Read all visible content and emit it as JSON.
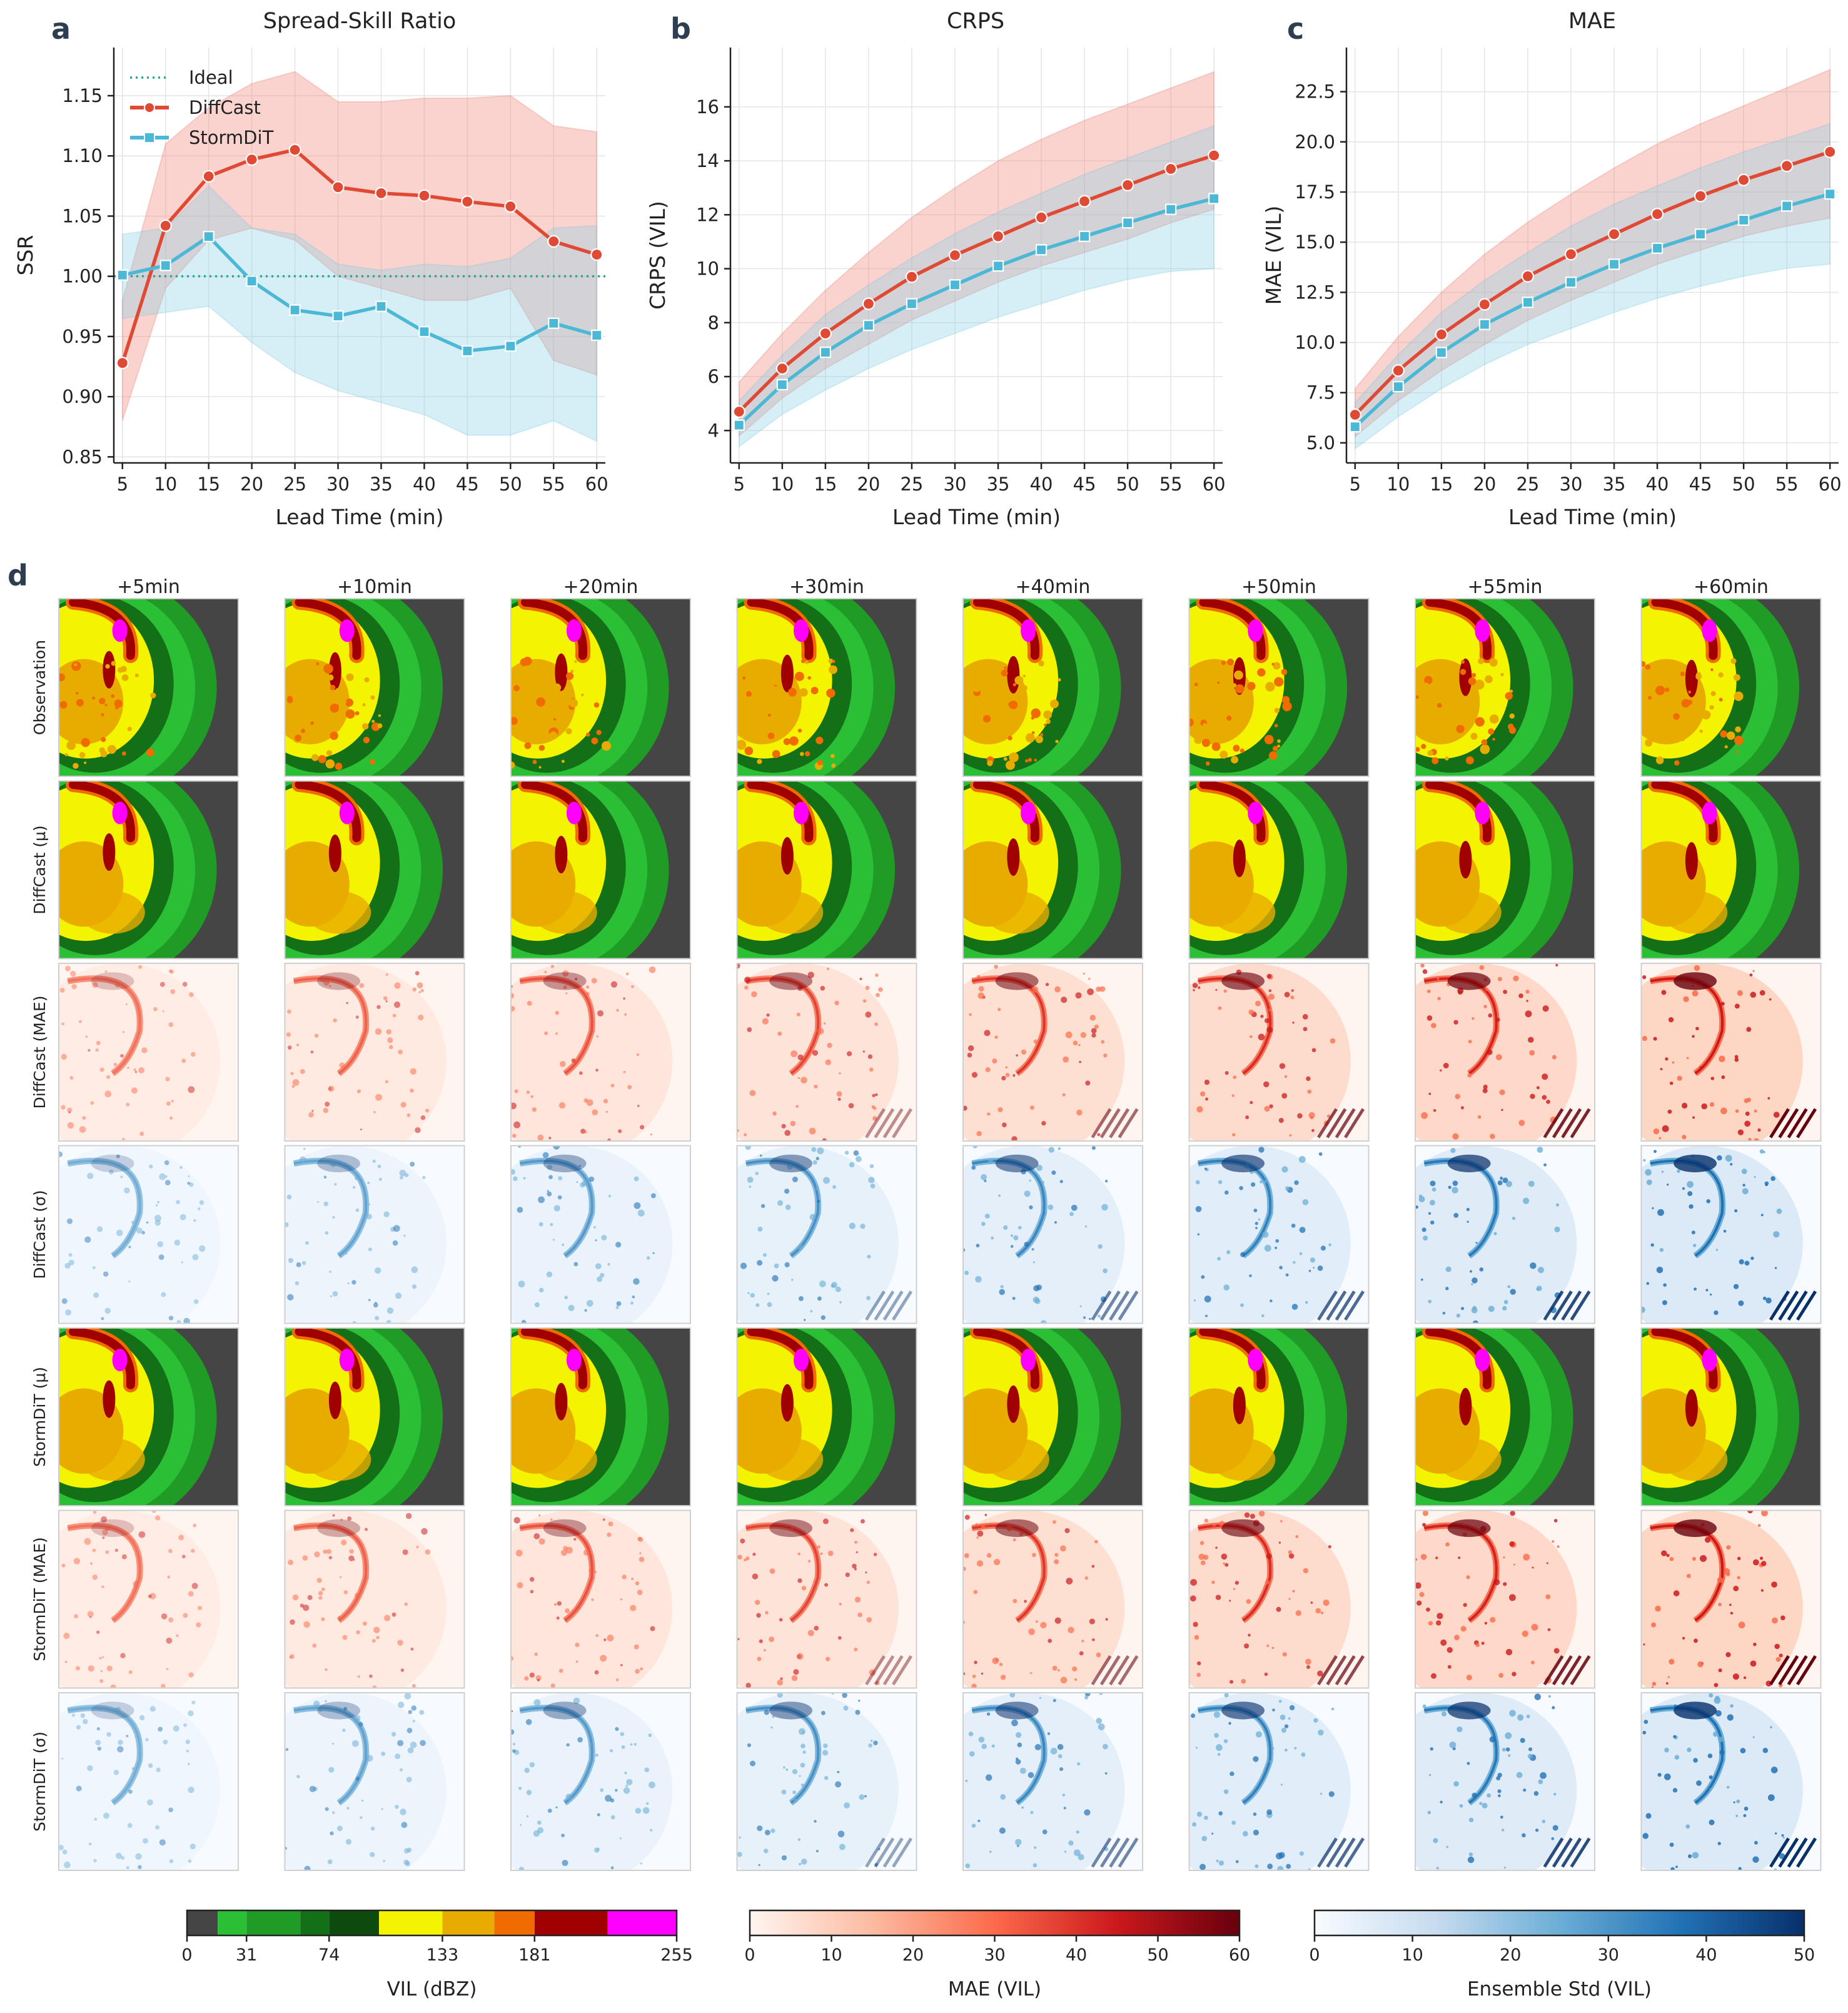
{
  "chart_data": [
    {
      "id": "ssr",
      "panel_letter": "a",
      "type": "line",
      "title": "Spread-Skill Ratio",
      "xlabel": "Lead Time (min)",
      "ylabel": "SSR",
      "x": [
        5,
        10,
        15,
        20,
        25,
        30,
        35,
        40,
        45,
        50,
        55,
        60
      ],
      "xticks": [
        "5",
        "10",
        "15",
        "20",
        "25",
        "30",
        "35",
        "40",
        "45",
        "50",
        "55",
        "60"
      ],
      "xlim": [
        4,
        61
      ],
      "ylim": [
        0.845,
        1.19
      ],
      "yticks": [
        "0.85",
        "0.90",
        "0.95",
        "1.00",
        "1.05",
        "1.10",
        "1.15"
      ],
      "ytick_values": [
        0.85,
        0.9,
        0.95,
        1.0,
        1.05,
        1.1,
        1.15
      ],
      "grid": true,
      "legend_position": "top-left",
      "reference_line": {
        "name": "Ideal",
        "value": 1.0,
        "color": "#22a88e"
      },
      "series": [
        {
          "name": "DiffCast",
          "color": "#e04a34",
          "band_color": "#f0867a",
          "marker": "circle",
          "values": [
            0.928,
            1.042,
            1.083,
            1.097,
            1.105,
            1.074,
            1.069,
            1.067,
            1.062,
            1.058,
            1.029,
            1.018
          ],
          "lower": [
            0.88,
            0.99,
            1.03,
            1.04,
            1.03,
            1.0,
            0.99,
            0.98,
            0.98,
            0.99,
            0.93,
            0.918
          ],
          "upper": [
            0.98,
            1.11,
            1.14,
            1.16,
            1.17,
            1.145,
            1.145,
            1.148,
            1.148,
            1.15,
            1.125,
            1.12
          ]
        },
        {
          "name": "StormDiT",
          "color": "#4bb8d6",
          "band_color": "#8ed1e4",
          "marker": "square",
          "values": [
            1.001,
            1.009,
            1.033,
            0.996,
            0.972,
            0.967,
            0.975,
            0.954,
            0.938,
            0.942,
            0.961,
            0.951
          ],
          "lower": [
            0.965,
            0.97,
            0.975,
            0.945,
            0.92,
            0.905,
            0.895,
            0.885,
            0.868,
            0.868,
            0.88,
            0.863
          ],
          "upper": [
            1.035,
            1.04,
            1.075,
            1.04,
            1.035,
            1.01,
            1.005,
            1.01,
            1.008,
            1.015,
            1.04,
            1.042
          ]
        }
      ]
    },
    {
      "id": "crps",
      "panel_letter": "b",
      "type": "line",
      "title": "CRPS",
      "xlabel": "Lead Time (min)",
      "ylabel": "CRPS (VIL)",
      "x": [
        5,
        10,
        15,
        20,
        25,
        30,
        35,
        40,
        45,
        50,
        55,
        60
      ],
      "xticks": [
        "5",
        "10",
        "15",
        "20",
        "25",
        "30",
        "35",
        "40",
        "45",
        "50",
        "55",
        "60"
      ],
      "xlim": [
        4,
        61
      ],
      "ylim": [
        2.8,
        18.2
      ],
      "yticks": [
        "4",
        "6",
        "8",
        "10",
        "12",
        "14",
        "16"
      ],
      "ytick_values": [
        4,
        6,
        8,
        10,
        12,
        14,
        16
      ],
      "grid": true,
      "series": [
        {
          "name": "DiffCast",
          "color": "#e04a34",
          "band_color": "#f0867a",
          "marker": "circle",
          "values": [
            4.7,
            6.3,
            7.6,
            8.7,
            9.7,
            10.5,
            11.2,
            11.9,
            12.5,
            13.1,
            13.7,
            14.2
          ],
          "lower": [
            3.8,
            5.2,
            6.3,
            7.2,
            8.1,
            8.8,
            9.5,
            10.1,
            10.6,
            11.1,
            11.7,
            12.2
          ],
          "upper": [
            5.8,
            7.6,
            9.2,
            10.6,
            11.9,
            13.0,
            14.0,
            14.8,
            15.5,
            16.1,
            16.7,
            17.3
          ]
        },
        {
          "name": "StormDiT",
          "color": "#4bb8d6",
          "band_color": "#8ed1e4",
          "marker": "square",
          "values": [
            4.2,
            5.7,
            6.9,
            7.9,
            8.7,
            9.4,
            10.1,
            10.7,
            11.2,
            11.7,
            12.2,
            12.6
          ],
          "lower": [
            3.4,
            4.6,
            5.5,
            6.3,
            7.0,
            7.6,
            8.2,
            8.7,
            9.2,
            9.6,
            9.9,
            10.0
          ],
          "upper": [
            5.1,
            6.8,
            8.3,
            9.4,
            10.4,
            11.3,
            12.1,
            12.8,
            13.5,
            14.1,
            14.7,
            15.3
          ]
        }
      ]
    },
    {
      "id": "mae",
      "panel_letter": "c",
      "type": "line",
      "title": "MAE",
      "xlabel": "Lead Time (min)",
      "ylabel": "MAE (VIL)",
      "x": [
        5,
        10,
        15,
        20,
        25,
        30,
        35,
        40,
        45,
        50,
        55,
        60
      ],
      "xticks": [
        "5",
        "10",
        "15",
        "20",
        "25",
        "30",
        "35",
        "40",
        "45",
        "50",
        "55",
        "60"
      ],
      "xlim": [
        4,
        61
      ],
      "ylim": [
        4.0,
        24.7
      ],
      "yticks": [
        "5.0",
        "7.5",
        "10.0",
        "12.5",
        "15.0",
        "17.5",
        "20.0",
        "22.5"
      ],
      "ytick_values": [
        5.0,
        7.5,
        10.0,
        12.5,
        15.0,
        17.5,
        20.0,
        22.5
      ],
      "grid": true,
      "series": [
        {
          "name": "DiffCast",
          "color": "#e04a34",
          "band_color": "#f0867a",
          "marker": "circle",
          "values": [
            6.4,
            8.6,
            10.4,
            11.9,
            13.3,
            14.4,
            15.4,
            16.4,
            17.3,
            18.1,
            18.8,
            19.5
          ],
          "lower": [
            5.3,
            7.1,
            8.6,
            9.9,
            11.1,
            12.1,
            13.0,
            13.9,
            14.6,
            15.3,
            15.8,
            16.2
          ],
          "upper": [
            7.7,
            10.3,
            12.5,
            14.4,
            16.0,
            17.4,
            18.7,
            19.9,
            20.9,
            21.8,
            22.7,
            23.6
          ]
        },
        {
          "name": "StormDiT",
          "color": "#4bb8d6",
          "band_color": "#8ed1e4",
          "marker": "square",
          "values": [
            5.8,
            7.8,
            9.5,
            10.9,
            12.0,
            13.0,
            13.9,
            14.7,
            15.4,
            16.1,
            16.8,
            17.4
          ],
          "lower": [
            4.7,
            6.3,
            7.7,
            8.9,
            9.9,
            10.7,
            11.5,
            12.2,
            12.8,
            13.3,
            13.7,
            13.9
          ],
          "upper": [
            7.0,
            9.4,
            11.5,
            13.1,
            14.5,
            15.8,
            16.9,
            17.8,
            18.7,
            19.5,
            20.2,
            20.9
          ]
        }
      ]
    }
  ],
  "grid": {
    "panel_letter": "d",
    "columns": [
      "+5min",
      "+10min",
      "+20min",
      "+30min",
      "+40min",
      "+50min",
      "+55min",
      "+60min"
    ],
    "rows": [
      {
        "label": "Observation",
        "kind": "vil"
      },
      {
        "label": "DiffCast (μ)",
        "kind": "vil"
      },
      {
        "label": "DiffCast (MAE)",
        "kind": "mae"
      },
      {
        "label": "DiffCast (σ)",
        "kind": "std"
      },
      {
        "label": "StormDiT (μ)",
        "kind": "vil"
      },
      {
        "label": "StormDiT (MAE)",
        "kind": "mae"
      },
      {
        "label": "StormDiT (σ)",
        "kind": "std"
      }
    ]
  },
  "colorbars": {
    "vil": {
      "label": "VIL (dBZ)",
      "ticks": [
        "0",
        "31",
        "74",
        "133",
        "181",
        "255"
      ],
      "tick_values": [
        0,
        31,
        74,
        133,
        181,
        255
      ],
      "max": 255,
      "bounds": [
        0,
        16,
        31,
        59,
        74,
        100,
        133,
        160,
        181,
        219,
        255
      ],
      "colors": [
        "#454545",
        "#2bbf35",
        "#1f9b26",
        "#147017",
        "#0c4a0e",
        "#f4f400",
        "#e8ab00",
        "#f06b00",
        "#a00000",
        "#ff00ff"
      ]
    },
    "mae": {
      "label": "MAE (VIL)",
      "ticks": [
        "0",
        "10",
        "20",
        "30",
        "40",
        "50",
        "60"
      ],
      "tick_values": [
        0,
        10,
        20,
        30,
        40,
        50,
        60
      ],
      "max": 60,
      "stops": [
        "#fff5f0",
        "#fcbba1",
        "#fb6a4a",
        "#cb181d",
        "#67000d"
      ]
    },
    "std": {
      "label": "Ensemble Std (VIL)",
      "ticks": [
        "0",
        "10",
        "20",
        "30",
        "40",
        "50"
      ],
      "tick_values": [
        0,
        10,
        20,
        30,
        40,
        50
      ],
      "max": 50,
      "stops": [
        "#f7fbff",
        "#c6dbef",
        "#6baed6",
        "#2171b5",
        "#08306b"
      ]
    }
  }
}
